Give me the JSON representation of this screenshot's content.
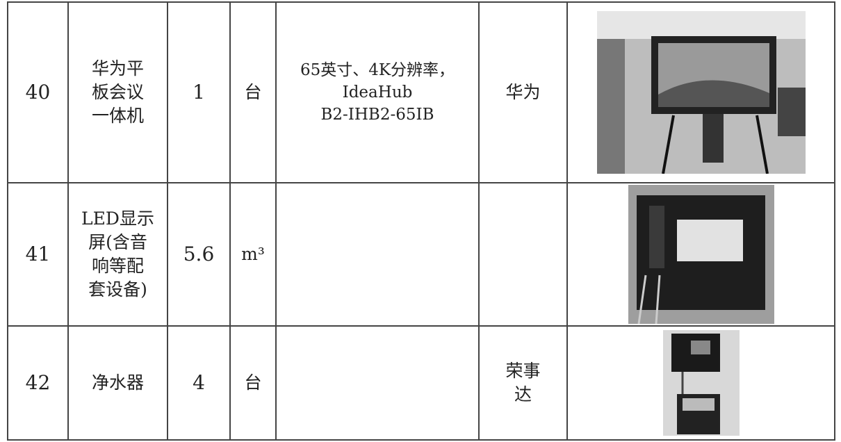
{
  "table": {
    "rows": [
      {
        "no": "40",
        "name": [
          "华为平",
          "板会议",
          "一体机"
        ],
        "qty": "1",
        "unit": "台",
        "spec": [
          "65英寸、4K分辨率，",
          "IdeaHub",
          "B2-IHB2-65IB"
        ],
        "brand": [
          "华为"
        ]
      },
      {
        "no": "41",
        "name": [
          "LED显示",
          "屏(含音",
          "响等配",
          "套设备)"
        ],
        "qty": "5.6",
        "unit": "m³"
      },
      {
        "no": "42",
        "name": [
          "净水器"
        ],
        "qty": "4",
        "unit": "台",
        "brand": [
          "荣事",
          "达"
        ]
      }
    ]
  }
}
